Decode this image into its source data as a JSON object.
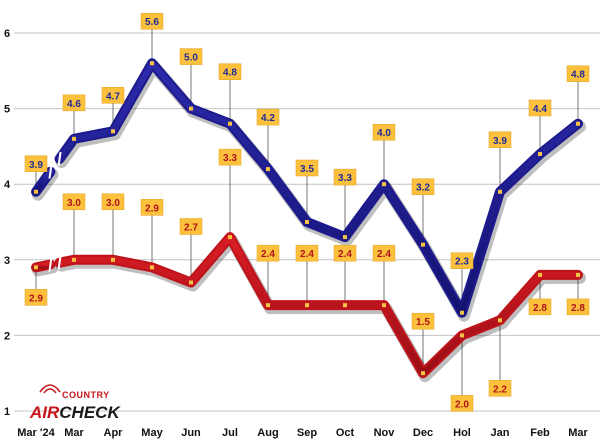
{
  "chart_data": {
    "type": "line",
    "title": "",
    "xlabel": "",
    "ylabel": "",
    "ylim": [
      1,
      6
    ],
    "yticks": [
      "1",
      "2",
      "3",
      "4",
      "5",
      "6"
    ],
    "categories": [
      "Mar '24",
      "Mar",
      "Apr",
      "May",
      "Jun",
      "Jul",
      "Aug",
      "Sep",
      "Oct",
      "Nov",
      "Dec",
      "Hol",
      "Jan",
      "Feb",
      "Mar"
    ],
    "series": [
      {
        "name": "blue-series",
        "color": "#1c1a8c",
        "values": [
          3.9,
          4.6,
          4.7,
          5.6,
          5.0,
          4.8,
          4.2,
          3.5,
          3.3,
          4.0,
          3.2,
          2.3,
          3.9,
          4.4,
          4.8
        ],
        "labels": [
          "3.9",
          "4.6",
          "4.7",
          "5.6",
          "5.0",
          "4.8",
          "4.2",
          "3.5",
          "3.3",
          "4.0",
          "3.2",
          "2.3",
          "3.9",
          "4.4",
          "4.8"
        ]
      },
      {
        "name": "red-series",
        "color": "#c0121a",
        "values": [
          2.9,
          3.0,
          3.0,
          2.9,
          2.7,
          3.3,
          2.4,
          2.4,
          2.4,
          2.4,
          1.5,
          2.0,
          2.2,
          2.8,
          2.8
        ],
        "labels": [
          "2.9",
          "3.0",
          "3.0",
          "2.9",
          "2.7",
          "3.3",
          "2.4",
          "2.4",
          "2.4",
          "2.4",
          "1.5",
          "2.0",
          "2.2",
          "2.8",
          "2.8"
        ]
      }
    ],
    "grid": "horizontal"
  },
  "logo": {
    "line1": "COUNTRY",
    "line2a": "AIR",
    "line2b": "CHECK"
  }
}
